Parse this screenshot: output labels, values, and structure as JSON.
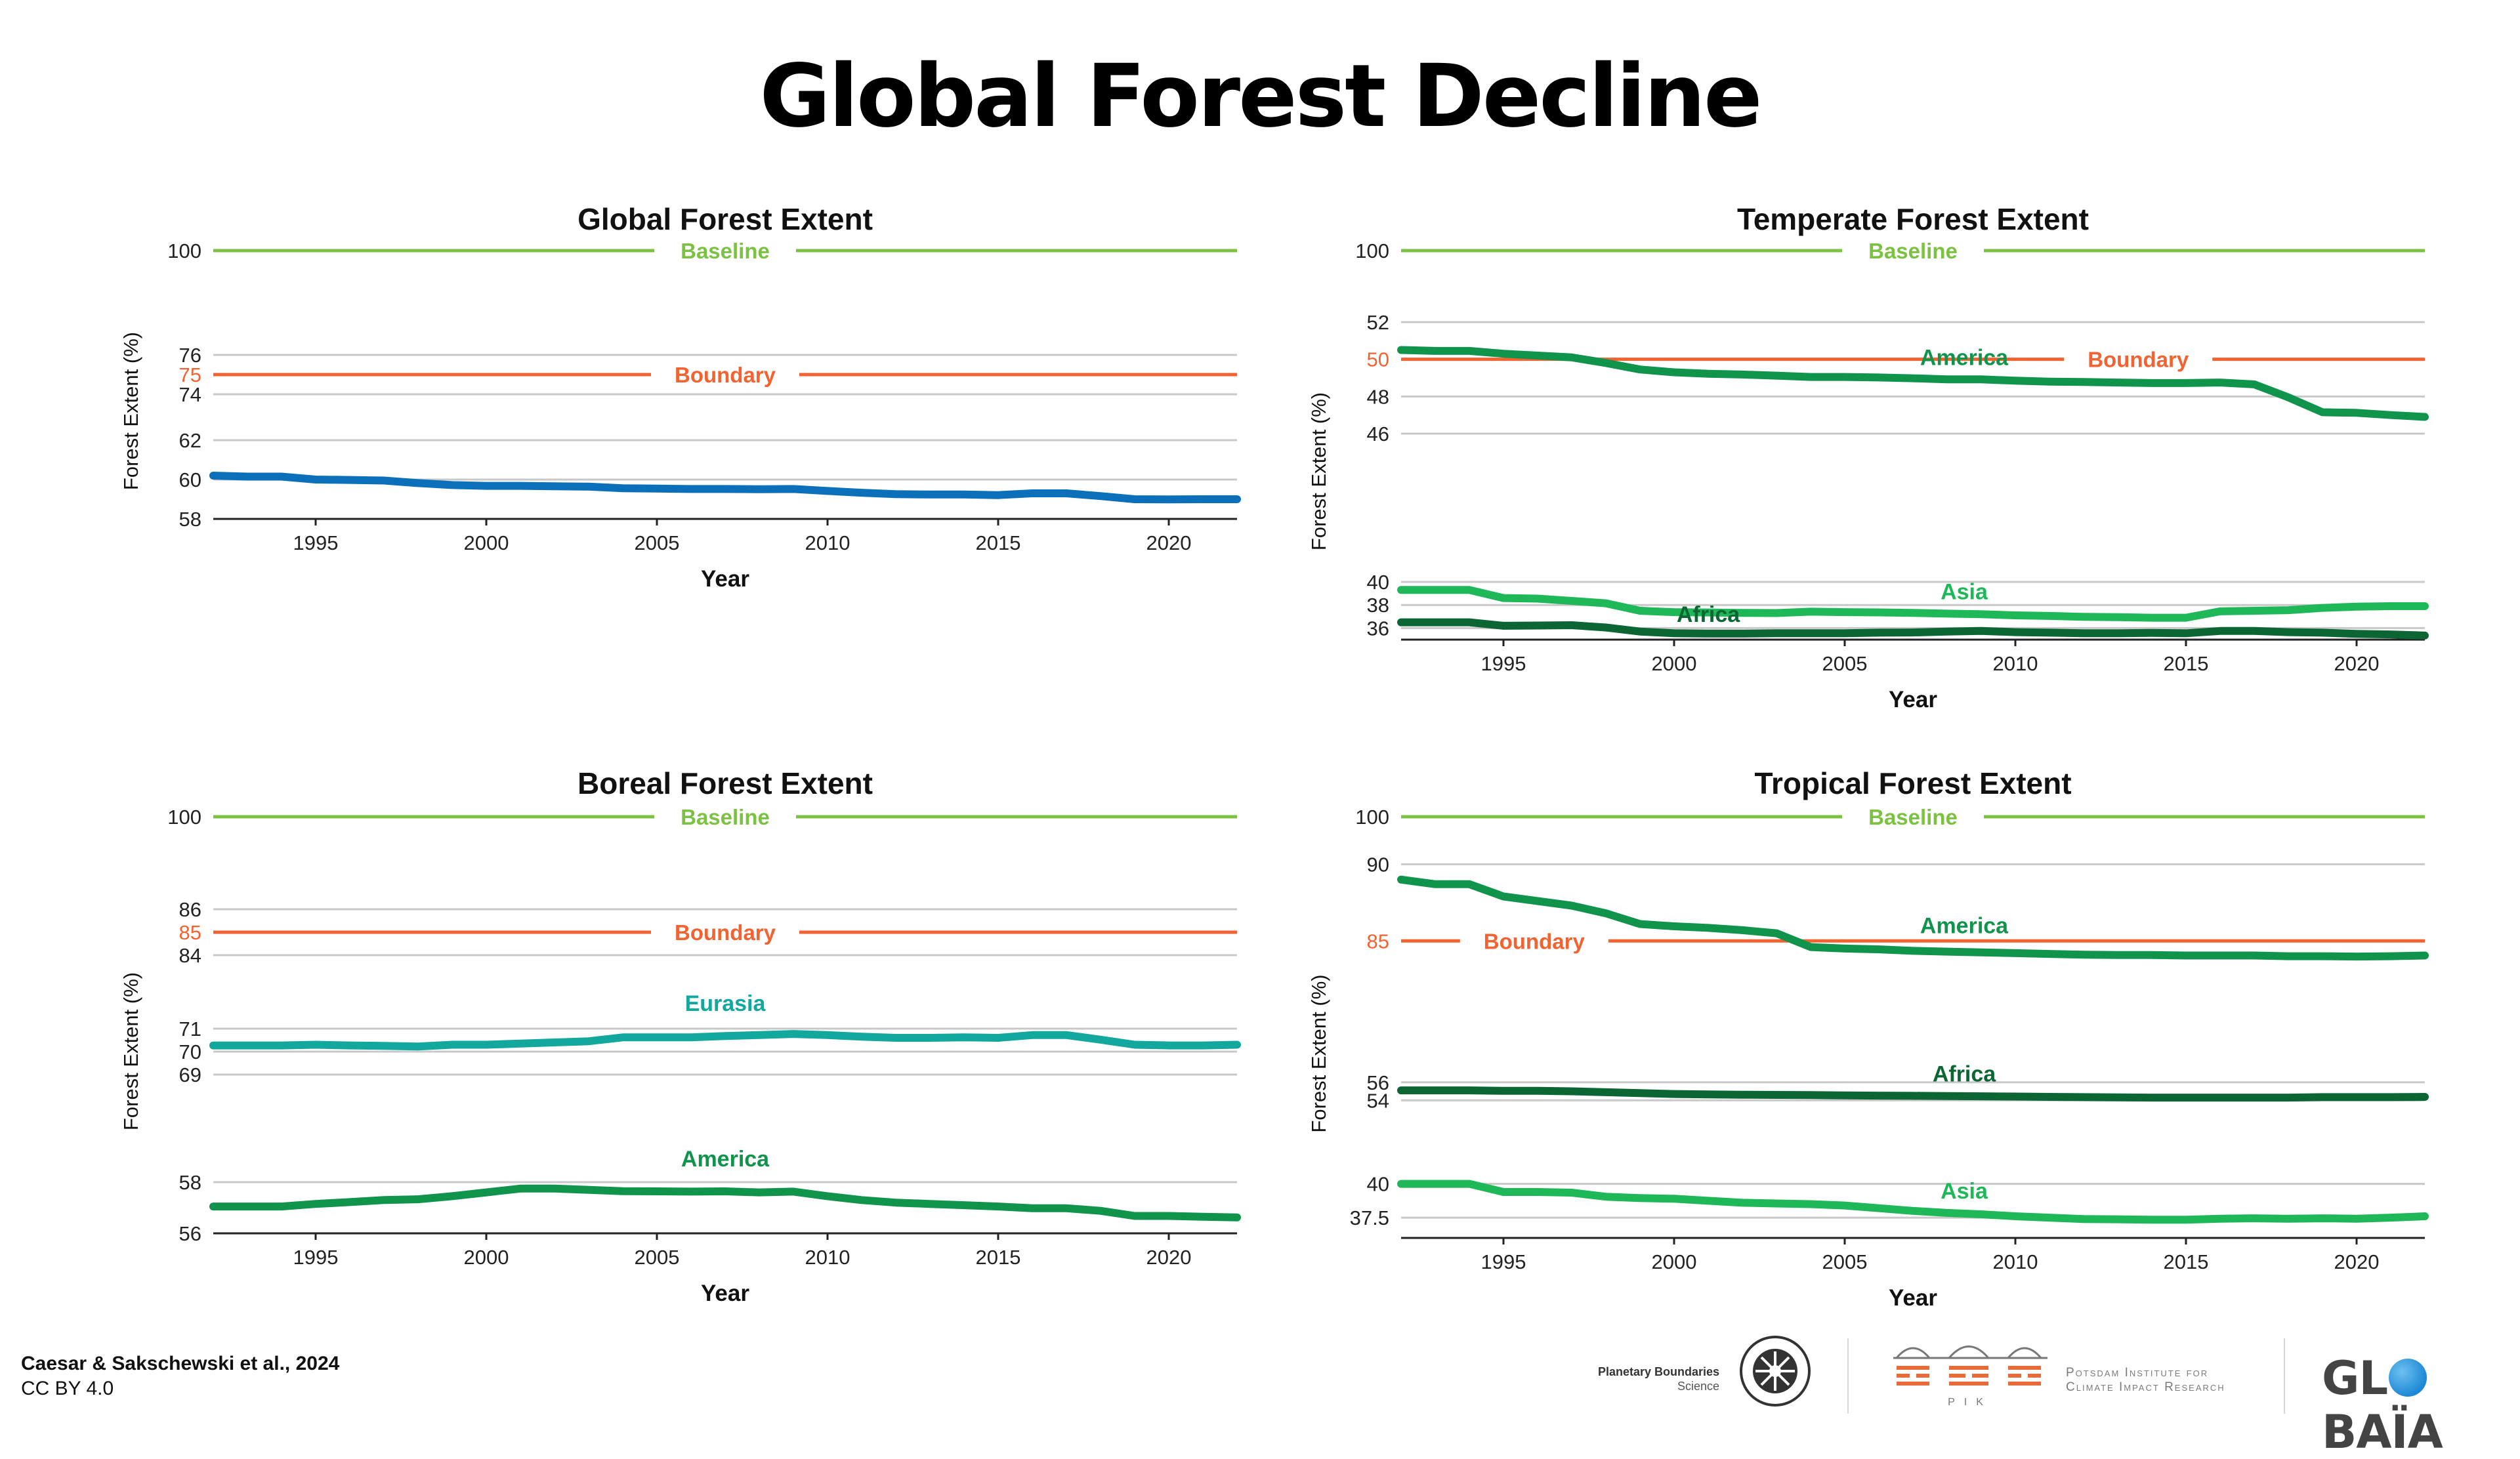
{
  "title": "Global Forest Decline",
  "footer": {
    "credit": "Caesar & Sakschewski et al., 2024",
    "license": "CC BY 4.0"
  },
  "logos": {
    "pbs_line1": "Planetary Boundaries",
    "pbs_line2": "Science",
    "pik_line1": "Potsdam Institute for",
    "pik_line2": "Climate Impact Research",
    "pik_mark": "PIK",
    "globaia_pre": "GL",
    "globaia_post": "BAÏA"
  },
  "colors": {
    "baseline": "#7cc242",
    "boundary": "#f26331",
    "global": "#0b6fba",
    "eurasia": "#12a89d",
    "america": "#10944b",
    "asia": "#1fb858",
    "africa": "#0b6633",
    "grid": "#c8c8c8"
  },
  "chart_data": [
    {
      "id": "global",
      "type": "line",
      "title": "Global Forest Extent",
      "xlabel": "Year",
      "ylabel": "Forest Extent (%)",
      "xlim": [
        1992,
        2022
      ],
      "xticks": [
        1995,
        2000,
        2005,
        2010,
        2015,
        2020
      ],
      "bands": [
        {
          "ylim": [
            99.9,
            100.1
          ],
          "ticks": [
            100
          ]
        },
        {
          "ylim": [
            74,
            76
          ],
          "ticks": [
            74,
            75,
            76
          ]
        },
        {
          "ylim": [
            58,
            62
          ],
          "ticks": [
            58,
            60,
            62
          ]
        }
      ],
      "baseline": {
        "value": 100,
        "label": "Baseline"
      },
      "boundary": {
        "value": 75,
        "label": "Boundary"
      },
      "series": [
        {
          "color": "global",
          "label": "",
          "x": [
            1992,
            1993,
            1994,
            1995,
            1996,
            1997,
            1998,
            1999,
            2000,
            2001,
            2002,
            2003,
            2004,
            2005,
            2006,
            2007,
            2008,
            2009,
            2010,
            2011,
            2012,
            2013,
            2014,
            2015,
            2016,
            2017,
            2018,
            2019,
            2020,
            2021,
            2022
          ],
          "y": [
            60.2,
            60.15,
            60.15,
            60.0,
            59.98,
            59.95,
            59.82,
            59.72,
            59.68,
            59.68,
            59.66,
            59.64,
            59.56,
            59.54,
            59.52,
            59.52,
            59.51,
            59.52,
            59.42,
            59.33,
            59.26,
            59.24,
            59.24,
            59.21,
            59.3,
            59.3,
            59.16,
            59.0,
            58.99,
            59.0,
            59.0
          ]
        }
      ]
    },
    {
      "id": "temperate",
      "type": "line",
      "title": "Temperate Forest Extent",
      "xlabel": "Year",
      "ylabel": "Forest Extent (%)",
      "xlim": [
        1992,
        2022
      ],
      "xticks": [
        1995,
        2000,
        2005,
        2010,
        2015,
        2020
      ],
      "bands": [
        {
          "ylim": [
            99.9,
            100.1
          ],
          "ticks": [
            100
          ]
        },
        {
          "ylim": [
            46,
            52
          ],
          "ticks": [
            46,
            48,
            50,
            52
          ]
        },
        {
          "ylim": [
            35,
            40
          ],
          "ticks": [
            36,
            38,
            40
          ]
        }
      ],
      "baseline": {
        "value": 100,
        "label": "Baseline"
      },
      "boundary": {
        "value": 50,
        "label": "Boundary"
      },
      "series": [
        {
          "color": "america",
          "label": "America",
          "x": [
            1992,
            1993,
            1994,
            1995,
            1996,
            1997,
            1998,
            1999,
            2000,
            2001,
            2002,
            2003,
            2004,
            2005,
            2006,
            2007,
            2008,
            2009,
            2010,
            2011,
            2012,
            2013,
            2014,
            2015,
            2016,
            2017,
            2018,
            2019,
            2020,
            2021,
            2022
          ],
          "y": [
            50.5,
            50.45,
            50.45,
            50.3,
            50.2,
            50.1,
            49.8,
            49.45,
            49.3,
            49.22,
            49.18,
            49.12,
            49.05,
            49.05,
            49.02,
            48.98,
            48.92,
            48.92,
            48.85,
            48.8,
            48.78,
            48.75,
            48.72,
            48.72,
            48.75,
            48.65,
            47.95,
            47.15,
            47.12,
            47.0,
            46.9
          ]
        },
        {
          "color": "asia",
          "label": "Asia",
          "x": [
            1992,
            1993,
            1994,
            1995,
            1996,
            1997,
            1998,
            1999,
            2000,
            2001,
            2002,
            2003,
            2004,
            2005,
            2006,
            2007,
            2008,
            2009,
            2010,
            2011,
            2012,
            2013,
            2014,
            2015,
            2016,
            2017,
            2018,
            2019,
            2020,
            2021,
            2022
          ],
          "y": [
            39.3,
            39.3,
            39.3,
            38.6,
            38.55,
            38.35,
            38.15,
            37.5,
            37.38,
            37.35,
            37.32,
            37.3,
            37.42,
            37.38,
            37.36,
            37.32,
            37.25,
            37.2,
            37.1,
            37.05,
            36.98,
            36.95,
            36.9,
            36.9,
            37.45,
            37.5,
            37.55,
            37.75,
            37.85,
            37.9,
            37.9
          ]
        },
        {
          "color": "africa",
          "label": "Africa",
          "x": [
            1992,
            1993,
            1994,
            1995,
            1996,
            1997,
            1998,
            1999,
            2000,
            2001,
            2002,
            2003,
            2004,
            2005,
            2006,
            2007,
            2008,
            2009,
            2010,
            2011,
            2012,
            2013,
            2014,
            2015,
            2016,
            2017,
            2018,
            2019,
            2020,
            2021,
            2022
          ],
          "y": [
            36.5,
            36.5,
            36.5,
            36.2,
            36.22,
            36.25,
            36.05,
            35.7,
            35.55,
            35.52,
            35.52,
            35.55,
            35.55,
            35.55,
            35.6,
            35.62,
            35.7,
            35.75,
            35.65,
            35.6,
            35.55,
            35.55,
            35.58,
            35.55,
            35.75,
            35.75,
            35.65,
            35.6,
            35.5,
            35.45,
            35.35
          ]
        }
      ]
    },
    {
      "id": "boreal",
      "type": "line",
      "title": "Boreal Forest Extent",
      "xlabel": "Year",
      "ylabel": "Forest Extent (%)",
      "xlim": [
        1992,
        2022
      ],
      "xticks": [
        1995,
        2000,
        2005,
        2010,
        2015,
        2020
      ],
      "bands": [
        {
          "ylim": [
            99.9,
            100.1
          ],
          "ticks": [
            100
          ]
        },
        {
          "ylim": [
            84,
            86
          ],
          "ticks": [
            84,
            85,
            86
          ]
        },
        {
          "ylim": [
            69,
            71
          ],
          "ticks": [
            69,
            70,
            71
          ]
        },
        {
          "ylim": [
            56,
            58
          ],
          "ticks": [
            56,
            58
          ]
        }
      ],
      "baseline": {
        "value": 100,
        "label": "Baseline"
      },
      "boundary": {
        "value": 85,
        "label": "Boundary"
      },
      "series": [
        {
          "color": "eurasia",
          "label": "Eurasia",
          "x": [
            1992,
            1993,
            1994,
            1995,
            1996,
            1997,
            1998,
            1999,
            2000,
            2001,
            2002,
            2003,
            2004,
            2005,
            2006,
            2007,
            2008,
            2009,
            2010,
            2011,
            2012,
            2013,
            2014,
            2015,
            2016,
            2017,
            2018,
            2019,
            2020,
            2021,
            2022
          ],
          "y": [
            70.27,
            70.27,
            70.27,
            70.3,
            70.27,
            70.25,
            70.22,
            70.3,
            70.3,
            70.35,
            70.4,
            70.45,
            70.62,
            70.62,
            70.62,
            70.68,
            70.72,
            70.77,
            70.72,
            70.65,
            70.6,
            70.6,
            70.62,
            70.6,
            70.72,
            70.72,
            70.52,
            70.3,
            70.27,
            70.27,
            70.3
          ]
        },
        {
          "color": "america",
          "label": "America",
          "x": [
            1992,
            1993,
            1994,
            1995,
            1996,
            1997,
            1998,
            1999,
            2000,
            2001,
            2002,
            2003,
            2004,
            2005,
            2006,
            2007,
            2008,
            2009,
            2010,
            2011,
            2012,
            2013,
            2014,
            2015,
            2016,
            2017,
            2018,
            2019,
            2020,
            2021,
            2022
          ],
          "y": [
            57.05,
            57.05,
            57.05,
            57.15,
            57.22,
            57.3,
            57.33,
            57.45,
            57.6,
            57.75,
            57.75,
            57.7,
            57.65,
            57.64,
            57.63,
            57.64,
            57.6,
            57.63,
            57.45,
            57.3,
            57.2,
            57.15,
            57.1,
            57.05,
            56.98,
            56.98,
            56.88,
            56.68,
            56.68,
            56.65,
            56.62
          ]
        }
      ]
    },
    {
      "id": "tropical",
      "type": "line",
      "title": "Tropical Forest Extent",
      "xlabel": "Year",
      "ylabel": "Forest Extent (%)",
      "xlim": [
        1992,
        2022
      ],
      "xticks": [
        1995,
        2000,
        2005,
        2010,
        2015,
        2020
      ],
      "bands": [
        {
          "ylim": [
            99.9,
            100.1
          ],
          "ticks": [
            100
          ]
        },
        {
          "ylim": [
            83,
            91
          ],
          "ticks": [
            85,
            90
          ]
        },
        {
          "ylim": [
            53,
            57
          ],
          "ticks": [
            54,
            56
          ]
        },
        {
          "ylim": [
            36,
            41
          ],
          "ticks": [
            37.5,
            40
          ]
        }
      ],
      "baseline": {
        "value": 100,
        "label": "Baseline"
      },
      "boundary": {
        "value": 85,
        "label": "Boundary"
      },
      "series": [
        {
          "color": "america",
          "label": "America",
          "x": [
            1992,
            1993,
            1994,
            1995,
            1996,
            1997,
            1998,
            1999,
            2000,
            2001,
            2002,
            2003,
            2004,
            2005,
            2006,
            2007,
            2008,
            2009,
            2010,
            2011,
            2012,
            2013,
            2014,
            2015,
            2016,
            2017,
            2018,
            2019,
            2020,
            2021,
            2022
          ],
          "y": [
            89.0,
            88.7,
            88.7,
            87.9,
            87.6,
            87.3,
            86.8,
            86.1,
            85.95,
            85.85,
            85.7,
            85.5,
            84.6,
            84.5,
            84.45,
            84.35,
            84.3,
            84.25,
            84.2,
            84.15,
            84.1,
            84.08,
            84.08,
            84.05,
            84.05,
            84.05,
            84.0,
            84.0,
            83.98,
            84.0,
            84.05
          ]
        },
        {
          "color": "africa",
          "label": "Africa",
          "x": [
            1992,
            1993,
            1994,
            1995,
            1996,
            1997,
            1998,
            1999,
            2000,
            2001,
            2002,
            2003,
            2004,
            2005,
            2006,
            2007,
            2008,
            2009,
            2010,
            2011,
            2012,
            2013,
            2014,
            2015,
            2016,
            2017,
            2018,
            2019,
            2020,
            2021,
            2022
          ],
          "y": [
            55.1,
            55.1,
            55.1,
            55.05,
            55.05,
            55.0,
            54.9,
            54.8,
            54.7,
            54.65,
            54.62,
            54.6,
            54.58,
            54.55,
            54.52,
            54.5,
            54.48,
            54.45,
            54.42,
            54.38,
            54.35,
            54.33,
            54.3,
            54.3,
            54.3,
            54.3,
            54.3,
            54.35,
            54.35,
            54.35,
            54.38
          ]
        },
        {
          "color": "asia",
          "label": "Asia",
          "x": [
            1992,
            1993,
            1994,
            1995,
            1996,
            1997,
            1998,
            1999,
            2000,
            2001,
            2002,
            2003,
            2004,
            2005,
            2006,
            2007,
            2008,
            2009,
            2010,
            2011,
            2012,
            2013,
            2014,
            2015,
            2016,
            2017,
            2018,
            2019,
            2020,
            2021,
            2022
          ],
          "y": [
            40.0,
            40.0,
            40.0,
            39.4,
            39.4,
            39.35,
            39.05,
            38.95,
            38.9,
            38.75,
            38.6,
            38.55,
            38.5,
            38.4,
            38.2,
            38.0,
            37.85,
            37.75,
            37.6,
            37.5,
            37.4,
            37.38,
            37.35,
            37.35,
            37.42,
            37.45,
            37.42,
            37.45,
            37.42,
            37.5,
            37.6
          ]
        }
      ]
    }
  ]
}
